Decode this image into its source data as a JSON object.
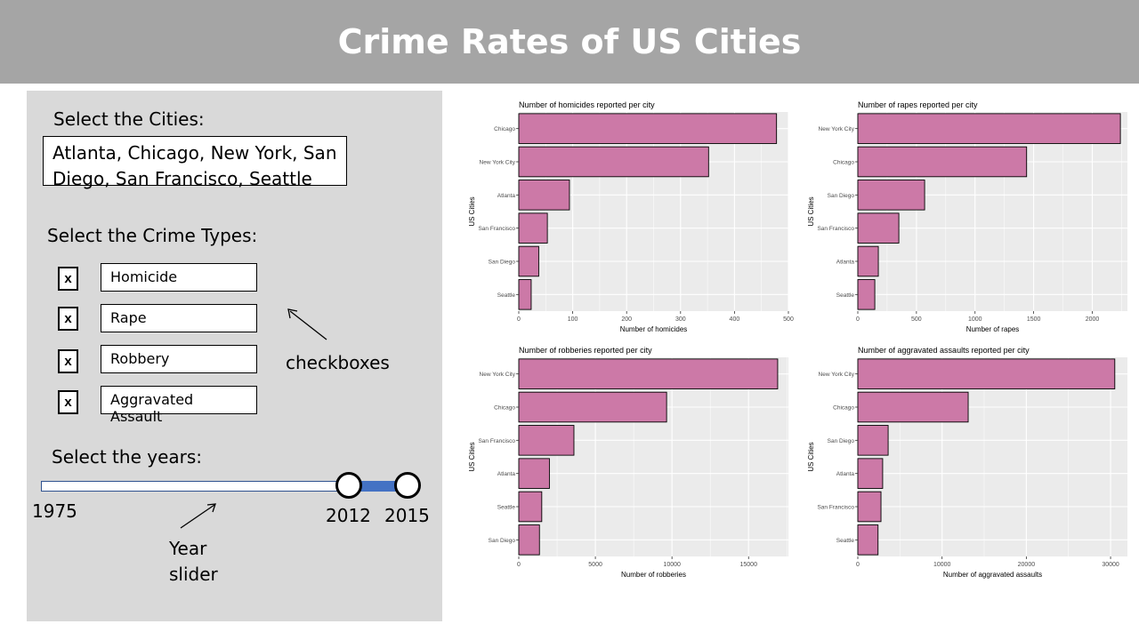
{
  "header": {
    "title": "Crime Rates of US Cities"
  },
  "controls": {
    "cities_label": "Select the Cities:",
    "cities_value_line1": "Atlanta, Chicago, New York, San",
    "cities_value_line2": "Diego, San Francisco, Seattle",
    "crime_types_label": "Select the Crime Types:",
    "crime_types": [
      {
        "label": "Homicide",
        "checked_mark": "x"
      },
      {
        "label": "Rape",
        "checked_mark": "x"
      },
      {
        "label": "Robbery",
        "checked_mark": "x"
      },
      {
        "label": "Aggravated Assault",
        "checked_mark": "x"
      }
    ],
    "checkbox_annotation": "checkboxes",
    "years_label": "Select the years:",
    "year_min_label": "1975",
    "year_low_label": "2012",
    "year_high_label": "2015",
    "slider_annotation_line1": "Year",
    "slider_annotation_line2": "slider",
    "slider": {
      "min": 1975,
      "max": 2015,
      "low": 2012,
      "high": 2015
    }
  },
  "colors": {
    "bar_fill": "#cc79a7",
    "panel_bg": "#ebebeb",
    "grid": "#ffffff"
  },
  "chart_data": [
    {
      "type": "bar",
      "orientation": "horizontal",
      "title": "Number of homicides reported per city",
      "xlabel": "Number of homicides",
      "ylabel": "US Cities",
      "categories": [
        "Chicago",
        "New York City",
        "Atlanta",
        "San Francisco",
        "San Diego",
        "Seattle"
      ],
      "values": [
        478,
        352,
        94,
        53,
        37,
        23
      ],
      "xlim": [
        0,
        500
      ],
      "xticks": [
        0,
        100,
        200,
        300,
        400,
        500
      ],
      "tick_labels": [
        "0",
        "100",
        "200",
        "300",
        "400",
        "500"
      ],
      "grid": true
    },
    {
      "type": "bar",
      "orientation": "horizontal",
      "title": "Number of rapes reported per city",
      "xlabel": "Number of rapes",
      "ylabel": "US Cities",
      "categories": [
        "New York City",
        "Chicago",
        "San Diego",
        "San Francisco",
        "Atlanta",
        "Seattle"
      ],
      "values": [
        2240,
        1440,
        570,
        350,
        175,
        145
      ],
      "xlim": [
        0,
        2300
      ],
      "xticks": [
        0,
        500,
        1000,
        1500,
        2000
      ],
      "tick_labels": [
        "0",
        "500",
        "1000",
        "1500",
        "2000"
      ],
      "grid": true
    },
    {
      "type": "bar",
      "orientation": "horizontal",
      "title": "Number of robberies reported per city",
      "xlabel": "Number of robberies",
      "ylabel": "US Cities",
      "categories": [
        "New York City",
        "Chicago",
        "San Francisco",
        "Atlanta",
        "Seattle",
        "San Diego"
      ],
      "values": [
        16900,
        9650,
        3600,
        2000,
        1500,
        1350
      ],
      "xlim": [
        0,
        17600
      ],
      "xticks": [
        0,
        5000,
        10000,
        15000
      ],
      "tick_labels": [
        "0",
        "5000",
        "10000",
        "15000"
      ],
      "grid": true
    },
    {
      "type": "bar",
      "orientation": "horizontal",
      "title": "Number of aggravated assaults reported per city",
      "xlabel": "Number of aggravated assaults",
      "ylabel": "US Cities",
      "categories": [
        "New York City",
        "Chicago",
        "San Diego",
        "Atlanta",
        "San Francisco",
        "Seattle"
      ],
      "values": [
        30500,
        13100,
        3600,
        2950,
        2750,
        2400
      ],
      "xlim": [
        0,
        32000
      ],
      "xticks": [
        0,
        10000,
        20000,
        30000
      ],
      "tick_labels": [
        "0",
        "10000",
        "20000",
        "30000"
      ],
      "grid": true
    }
  ]
}
